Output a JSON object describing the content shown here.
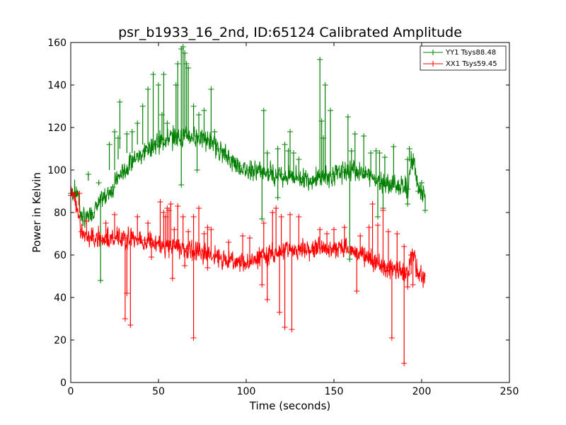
{
  "chart_data": {
    "type": "line",
    "title": "psr_b1933_16_2nd, ID:65124 Calibrated Amplitude",
    "xlabel": "Time (seconds)",
    "ylabel": "Power in Kelvin",
    "xlim": [
      0,
      250
    ],
    "ylim": [
      0,
      160
    ],
    "xticks": [
      0,
      50,
      100,
      150,
      200,
      250
    ],
    "yticks": [
      0,
      20,
      40,
      60,
      80,
      100,
      120,
      140,
      160
    ],
    "legend_position": "upper-right",
    "grid": false,
    "series": [
      {
        "name": "YY1 Tsys88.48",
        "color": "#008000",
        "marker": "+",
        "x": [
          0,
          2,
          4,
          6,
          8,
          10,
          12,
          14,
          16,
          18,
          20,
          22,
          24,
          26,
          28,
          30,
          32,
          34,
          36,
          38,
          40,
          42,
          44,
          46,
          48,
          50,
          52,
          54,
          56,
          58,
          60,
          62,
          64,
          66,
          68,
          70,
          72,
          74,
          76,
          78,
          80,
          82,
          84,
          86,
          88,
          90,
          92,
          94,
          96,
          98,
          100,
          102,
          104,
          106,
          108,
          110,
          112,
          114,
          116,
          118,
          120,
          122,
          124,
          126,
          128,
          130,
          132,
          134,
          136,
          138,
          140,
          142,
          144,
          146,
          148,
          150,
          152,
          154,
          156,
          158,
          160,
          162,
          164,
          166,
          168,
          170,
          172,
          174,
          176,
          178,
          180,
          182,
          184,
          186,
          188,
          190,
          192,
          194,
          196,
          198,
          200,
          202
        ],
        "y": [
          89,
          90,
          89,
          78,
          77,
          78,
          80,
          82,
          84,
          86,
          88,
          90,
          92,
          95,
          97,
          99,
          101,
          103,
          105,
          106,
          107,
          109,
          110,
          111,
          112,
          113,
          114,
          114,
          115,
          115,
          116,
          116,
          116,
          116,
          116,
          116,
          116,
          115,
          115,
          114,
          113,
          112,
          110,
          109,
          107,
          106,
          104,
          103,
          102,
          101,
          100,
          100,
          100,
          100,
          99,
          99,
          99,
          99,
          98,
          98,
          98,
          97,
          97,
          97,
          97,
          97,
          96,
          96,
          96,
          96,
          96,
          96,
          97,
          97,
          97,
          98,
          98,
          99,
          99,
          100,
          100,
          100,
          99,
          99,
          98,
          97,
          97,
          96,
          95,
          95,
          94,
          93,
          93,
          92,
          92,
          92,
          91,
          104,
          103,
          90,
          89,
          88
        ],
        "spikes_x": [
          10,
          16,
          22,
          25,
          27,
          28,
          32,
          35,
          38,
          41,
          44,
          47,
          50,
          52,
          53,
          55,
          60,
          61,
          63,
          64,
          65,
          66,
          67,
          70,
          73,
          76,
          80,
          82,
          88,
          110,
          112,
          118,
          122,
          124,
          125,
          127,
          130,
          142,
          143,
          144,
          145,
          148,
          158,
          160,
          162,
          167,
          171,
          174,
          176,
          179,
          184,
          192,
          193,
          200
        ],
        "spikes_lo": [
          95,
          93,
          100,
          100,
          105,
          110,
          108,
          108,
          112,
          112,
          112,
          112,
          113,
          114,
          114,
          115,
          115,
          116,
          116,
          116,
          116,
          116,
          116,
          116,
          116,
          116,
          114,
          112,
          107,
          99,
          99,
          98,
          97,
          97,
          97,
          97,
          97,
          96,
          96,
          96,
          96,
          97,
          99,
          100,
          100,
          99,
          97,
          96,
          95,
          94,
          93,
          91,
          104,
          88
        ],
        "spikes_hi": [
          98,
          94,
          112,
          118,
          115,
          132,
          117,
          118,
          122,
          130,
          138,
          145,
          140,
          126,
          145,
          122,
          140,
          150,
          157,
          158,
          155,
          150,
          148,
          130,
          126,
          128,
          138,
          118,
          107,
          128,
          108,
          110,
          112,
          109,
          118,
          108,
          105,
          152,
          123,
          115,
          140,
          128,
          125,
          109,
          117,
          116,
          108,
          109,
          108,
          106,
          111,
          105,
          110,
          94
        ],
        "dips_x": [
          17,
          63,
          72,
          109,
          118,
          159,
          175,
          178,
          192,
          202
        ],
        "dips_lo": [
          48,
          93,
          100,
          77,
          87,
          58,
          78,
          82,
          84,
          81
        ],
        "dips_hi": [
          85,
          116,
          116,
          99,
          98,
          100,
          96,
          95,
          91,
          88
        ]
      },
      {
        "name": "XX1 Tsys59.45",
        "color": "#ff0000",
        "marker": "+",
        "x": [
          0,
          2,
          4,
          6,
          8,
          10,
          12,
          14,
          16,
          18,
          20,
          22,
          24,
          26,
          28,
          30,
          32,
          34,
          36,
          38,
          40,
          42,
          44,
          46,
          48,
          50,
          52,
          54,
          56,
          58,
          60,
          62,
          64,
          66,
          68,
          70,
          72,
          74,
          76,
          78,
          80,
          82,
          84,
          86,
          88,
          90,
          92,
          94,
          96,
          98,
          100,
          102,
          104,
          106,
          108,
          110,
          112,
          114,
          116,
          118,
          120,
          122,
          124,
          126,
          128,
          130,
          132,
          134,
          136,
          138,
          140,
          142,
          144,
          146,
          148,
          150,
          152,
          154,
          156,
          158,
          160,
          162,
          164,
          166,
          168,
          170,
          172,
          174,
          176,
          178,
          180,
          182,
          184,
          186,
          188,
          190,
          192,
          194,
          196,
          198,
          200,
          202
        ],
        "y": [
          88,
          88,
          80,
          71,
          70,
          69,
          69,
          68,
          68,
          68,
          68,
          68,
          68,
          68,
          68,
          68,
          68,
          68,
          68,
          67,
          67,
          67,
          66,
          66,
          66,
          65,
          65,
          64,
          64,
          64,
          64,
          63,
          63,
          63,
          63,
          62,
          62,
          62,
          61,
          61,
          60,
          59,
          59,
          58,
          58,
          57,
          57,
          57,
          57,
          57,
          57,
          57,
          58,
          58,
          59,
          60,
          60,
          61,
          61,
          62,
          62,
          62,
          62,
          62,
          62,
          62,
          62,
          62,
          62,
          62,
          63,
          63,
          63,
          63,
          63,
          63,
          63,
          63,
          63,
          62,
          62,
          62,
          61,
          60,
          59,
          58,
          57,
          56,
          55,
          55,
          54,
          54,
          53,
          53,
          52,
          52,
          51,
          60,
          59,
          50,
          50,
          50
        ],
        "spikes_x": [
          5,
          9,
          20,
          25,
          38,
          44,
          51,
          53,
          54,
          55,
          56,
          57,
          59,
          61,
          64,
          67,
          70,
          73,
          76,
          78,
          80,
          90,
          98,
          102,
          110,
          115,
          117,
          120,
          125,
          130,
          142,
          146,
          150,
          156,
          165,
          170,
          172,
          175,
          178,
          181,
          186,
          190,
          194
        ],
        "spikes_lo": [
          80,
          69,
          68,
          68,
          67,
          66,
          65,
          64,
          64,
          64,
          64,
          64,
          64,
          63,
          63,
          63,
          62,
          62,
          61,
          61,
          60,
          57,
          57,
          57,
          60,
          61,
          61,
          62,
          62,
          62,
          63,
          63,
          63,
          63,
          61,
          58,
          57,
          56,
          55,
          54,
          53,
          52,
          51
        ],
        "spikes_hi": [
          89,
          76,
          75,
          79,
          78,
          75,
          85,
          80,
          78,
          82,
          81,
          84,
          72,
          83,
          78,
          71,
          78,
          82,
          70,
          73,
          72,
          66,
          69,
          68,
          75,
          80,
          82,
          78,
          79,
          78,
          72,
          70,
          72,
          73,
          69,
          73,
          84,
          74,
          81,
          71,
          70,
          64,
          60
        ],
        "dips_x": [
          31,
          32,
          34,
          46,
          58,
          65,
          70,
          78,
          109,
          112,
          119,
          122,
          126,
          163,
          183,
          190,
          192,
          195
        ],
        "dips_lo": [
          30,
          42,
          27,
          59,
          49,
          55,
          21,
          54,
          46,
          39,
          33,
          26,
          25,
          43,
          21,
          9,
          45,
          46
        ],
        "dips_hi": [
          68,
          68,
          68,
          66,
          64,
          63,
          62,
          61,
          60,
          60,
          61,
          62,
          62,
          61,
          53,
          52,
          51,
          60
        ]
      }
    ]
  }
}
